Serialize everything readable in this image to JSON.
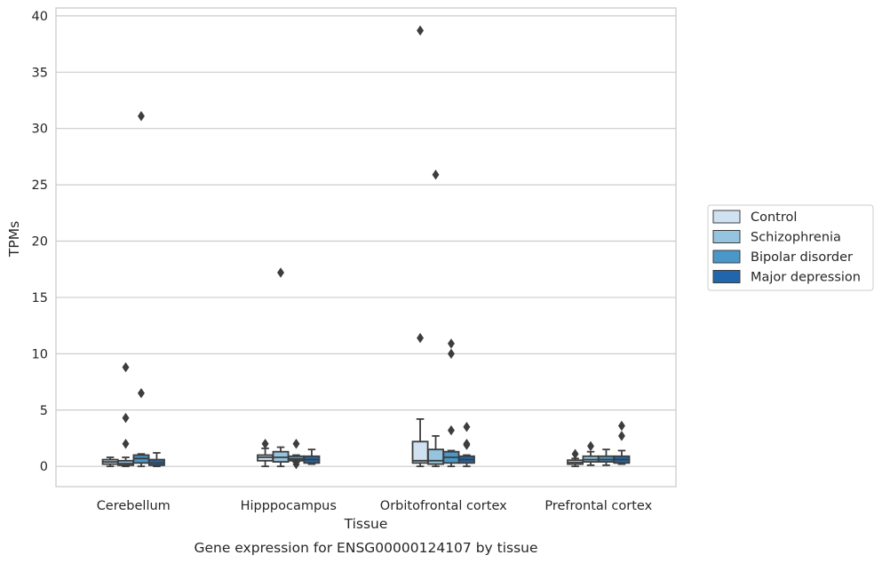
{
  "chart_data": {
    "type": "box",
    "title": "Gene expression for ENSG00000124107 by tissue",
    "xlabel": "Tissue",
    "ylabel": "TPMs",
    "ylim": [
      -1.8,
      40.7
    ],
    "yticks": [
      0,
      5,
      10,
      15,
      20,
      25,
      30,
      35,
      40
    ],
    "grid": "horizontal",
    "legend_position": "right",
    "categories": [
      "Cerebellum",
      "Hipppocampus",
      "Orbitofrontal cortex",
      "Prefrontal cortex"
    ],
    "series": [
      {
        "name": "Control",
        "color": "#d0e1f2",
        "boxes": [
          {
            "whisker_low": 0.0,
            "q1": 0.2,
            "median": 0.4,
            "q3": 0.6,
            "whisker_high": 0.8,
            "outliers": []
          },
          {
            "whisker_low": 0.0,
            "q1": 0.5,
            "median": 0.8,
            "q3": 1.0,
            "whisker_high": 1.6,
            "outliers": [
              2.0
            ]
          },
          {
            "whisker_low": 0.0,
            "q1": 0.3,
            "median": 0.5,
            "q3": 2.2,
            "whisker_high": 4.2,
            "outliers": [
              11.4,
              38.7
            ]
          },
          {
            "whisker_low": 0.0,
            "q1": 0.2,
            "median": 0.35,
            "q3": 0.55,
            "whisker_high": 0.7,
            "outliers": [
              1.1
            ]
          }
        ]
      },
      {
        "name": "Schizophrenia",
        "color": "#94c4df",
        "boxes": [
          {
            "whisker_low": 0.0,
            "q1": 0.1,
            "median": 0.25,
            "q3": 0.5,
            "whisker_high": 0.8,
            "outliers": [
              2.0,
              4.3,
              8.8
            ]
          },
          {
            "whisker_low": 0.0,
            "q1": 0.4,
            "median": 0.8,
            "q3": 1.3,
            "whisker_high": 1.7,
            "outliers": [
              17.2
            ]
          },
          {
            "whisker_low": 0.0,
            "q1": 0.2,
            "median": 0.5,
            "q3": 1.5,
            "whisker_high": 2.7,
            "outliers": [
              25.9
            ]
          },
          {
            "whisker_low": 0.1,
            "q1": 0.4,
            "median": 0.6,
            "q3": 0.9,
            "whisker_high": 1.3,
            "outliers": [
              1.8
            ]
          }
        ]
      },
      {
        "name": "Bipolar disorder",
        "color": "#4a98c9",
        "boxes": [
          {
            "whisker_low": 0.0,
            "q1": 0.3,
            "median": 0.7,
            "q3": 1.0,
            "whisker_high": 1.1,
            "outliers": [
              6.5,
              31.1
            ]
          },
          {
            "whisker_low": 0.4,
            "q1": 0.5,
            "median": 0.65,
            "q3": 0.9,
            "whisker_high": 1.0,
            "outliers": [
              0.2,
              2.0
            ]
          },
          {
            "whisker_low": 0.0,
            "q1": 0.3,
            "median": 0.8,
            "q3": 1.3,
            "whisker_high": 1.4,
            "outliers": [
              3.2,
              10.0,
              10.9
            ]
          },
          {
            "whisker_low": 0.1,
            "q1": 0.4,
            "median": 0.6,
            "q3": 0.9,
            "whisker_high": 1.5,
            "outliers": []
          }
        ]
      },
      {
        "name": "Major depression",
        "color": "#2166ac",
        "boxes": [
          {
            "whisker_low": 0.0,
            "q1": 0.1,
            "median": 0.3,
            "q3": 0.6,
            "whisker_high": 1.2,
            "outliers": []
          },
          {
            "whisker_low": 0.2,
            "q1": 0.3,
            "median": 0.6,
            "q3": 0.9,
            "whisker_high": 1.5,
            "outliers": []
          },
          {
            "whisker_low": 0.0,
            "q1": 0.3,
            "median": 0.6,
            "q3": 0.9,
            "whisker_high": 1.0,
            "outliers": [
              1.9,
              2.0,
              3.5
            ]
          },
          {
            "whisker_low": 0.2,
            "q1": 0.3,
            "median": 0.6,
            "q3": 0.9,
            "whisker_high": 1.4,
            "outliers": [
              2.7,
              3.6
            ]
          }
        ]
      }
    ]
  },
  "styles": {
    "axes_edge_color": "#cccccc",
    "grid_color": "#cccccc",
    "box_edge_color": "#3d3d3d",
    "outlier_color": "#3d3d3d",
    "text_color": "#262626"
  }
}
